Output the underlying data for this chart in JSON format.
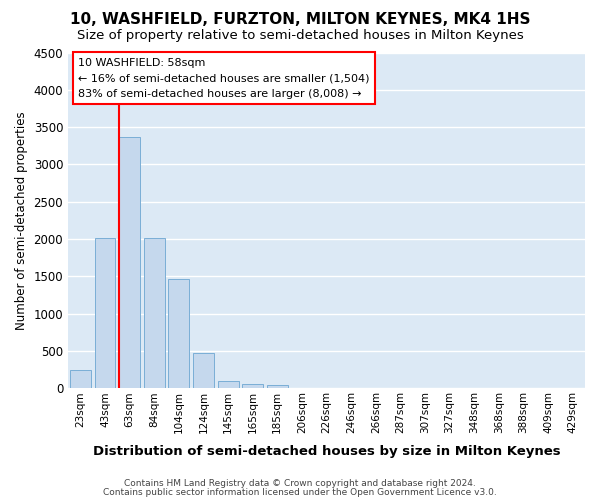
{
  "title": "10, WASHFIELD, FURZTON, MILTON KEYNES, MK4 1HS",
  "subtitle": "Size of property relative to semi-detached houses in Milton Keynes",
  "xlabel": "Distribution of semi-detached houses by size in Milton Keynes",
  "ylabel": "Number of semi-detached properties",
  "categories": [
    "23sqm",
    "43sqm",
    "63sqm",
    "84sqm",
    "104sqm",
    "124sqm",
    "145sqm",
    "165sqm",
    "185sqm",
    "206sqm",
    "226sqm",
    "246sqm",
    "266sqm",
    "287sqm",
    "307sqm",
    "327sqm",
    "348sqm",
    "368sqm",
    "388sqm",
    "409sqm",
    "429sqm"
  ],
  "values": [
    250,
    2020,
    3370,
    2020,
    1460,
    480,
    100,
    60,
    50,
    3,
    3,
    3,
    3,
    0,
    0,
    0,
    0,
    0,
    0,
    0,
    0
  ],
  "bar_color": "#c5d8ed",
  "bar_edge_color": "#7aaed6",
  "red_line_index": 2,
  "annotation_line1": "10 WASHFIELD: 58sqm",
  "annotation_line2": "← 16% of semi-detached houses are smaller (1,504)",
  "annotation_line3": "83% of semi-detached houses are larger (8,008) →",
  "ylim": [
    0,
    4500
  ],
  "yticks": [
    0,
    500,
    1000,
    1500,
    2000,
    2500,
    3000,
    3500,
    4000,
    4500
  ],
  "plot_bg_color": "#dce9f5",
  "grid_color": "#ffffff",
  "footer_line1": "Contains HM Land Registry data © Crown copyright and database right 2024.",
  "footer_line2": "Contains public sector information licensed under the Open Government Licence v3.0."
}
